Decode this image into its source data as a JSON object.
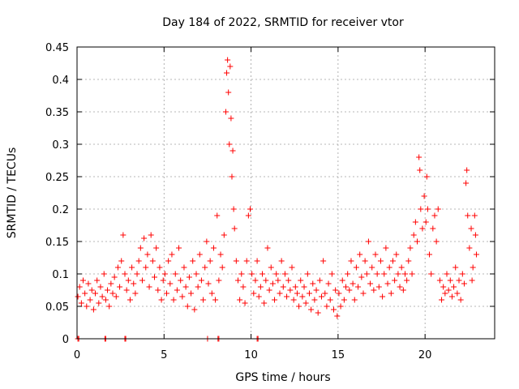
{
  "chart_data": {
    "type": "scatter",
    "title": "Day 184 of 2022, SRMTID for receiver vtor",
    "xlabel": "GPS time / hours",
    "ylabel": "SRMTID / TECUs",
    "xlim": [
      0,
      24
    ],
    "ylim": [
      0,
      0.45
    ],
    "xticks": [
      0,
      5,
      10,
      15,
      20
    ],
    "xtick_labels": [
      "0",
      "5",
      "10",
      "15",
      "20"
    ],
    "yticks": [
      0,
      0.05,
      0.1,
      0.15,
      0.2,
      0.25,
      0.3,
      0.35,
      0.4,
      0.45
    ],
    "ytick_labels": [
      "0",
      "0.05",
      "0.1",
      "0.15",
      "0.2",
      "0.25",
      "0.3",
      "0.35",
      "0.4",
      "0.45"
    ],
    "grid": true,
    "marker": "+",
    "color": "#ff0000",
    "series": [
      {
        "name": "SRMTID",
        "points": [
          [
            0.05,
            0.065
          ],
          [
            0.15,
            0.08
          ],
          [
            0.25,
            0.055
          ],
          [
            0.35,
            0.09
          ],
          [
            0.45,
            0.07
          ],
          [
            0.55,
            0.05
          ],
          [
            0.65,
            0.085
          ],
          [
            0.75,
            0.06
          ],
          [
            0.85,
            0.075
          ],
          [
            0.95,
            0.045
          ],
          [
            1.05,
            0.07
          ],
          [
            1.15,
            0.09
          ],
          [
            1.25,
            0.055
          ],
          [
            1.35,
            0.08
          ],
          [
            1.45,
            0.065
          ],
          [
            1.55,
            0.1
          ],
          [
            1.65,
            0.06
          ],
          [
            1.75,
            0.075
          ],
          [
            1.85,
            0.05
          ],
          [
            1.95,
            0.085
          ],
          [
            2.05,
            0.07
          ],
          [
            2.15,
            0.095
          ],
          [
            2.25,
            0.065
          ],
          [
            2.35,
            0.11
          ],
          [
            2.45,
            0.08
          ],
          [
            2.55,
            0.12
          ],
          [
            2.65,
            0.16
          ],
          [
            2.75,
            0.1
          ],
          [
            2.85,
            0.075
          ],
          [
            2.95,
            0.09
          ],
          [
            3.05,
            0.06
          ],
          [
            3.15,
            0.11
          ],
          [
            3.25,
            0.085
          ],
          [
            3.35,
            0.07
          ],
          [
            3.45,
            0.1
          ],
          [
            3.55,
            0.12
          ],
          [
            3.65,
            0.14
          ],
          [
            3.75,
            0.09
          ],
          [
            3.85,
            0.155
          ],
          [
            3.95,
            0.11
          ],
          [
            4.05,
            0.13
          ],
          [
            4.15,
            0.08
          ],
          [
            4.25,
            0.16
          ],
          [
            4.35,
            0.12
          ],
          [
            4.45,
            0.095
          ],
          [
            4.55,
            0.14
          ],
          [
            4.65,
            0.075
          ],
          [
            4.75,
            0.11
          ],
          [
            4.85,
            0.06
          ],
          [
            4.95,
            0.09
          ],
          [
            5.05,
            0.1
          ],
          [
            5.15,
            0.07
          ],
          [
            5.25,
            0.12
          ],
          [
            5.35,
            0.085
          ],
          [
            5.45,
            0.13
          ],
          [
            5.55,
            0.06
          ],
          [
            5.65,
            0.1
          ],
          [
            5.75,
            0.075
          ],
          [
            5.85,
            0.14
          ],
          [
            5.95,
            0.09
          ],
          [
            6.05,
            0.065
          ],
          [
            6.15,
            0.11
          ],
          [
            6.25,
            0.08
          ],
          [
            6.35,
            0.05
          ],
          [
            6.45,
            0.095
          ],
          [
            6.55,
            0.07
          ],
          [
            6.65,
            0.12
          ],
          [
            6.75,
            0.045
          ],
          [
            6.85,
            0.1
          ],
          [
            6.95,
            0.08
          ],
          [
            7.05,
            0.13
          ],
          [
            7.15,
            0.09
          ],
          [
            7.25,
            0.06
          ],
          [
            7.35,
            0.11
          ],
          [
            7.45,
            0.15
          ],
          [
            7.55,
            0.085
          ],
          [
            7.65,
            0.12
          ],
          [
            7.75,
            0.07
          ],
          [
            7.85,
            0.14
          ],
          [
            7.95,
            0.06
          ],
          [
            8.05,
            0.19
          ],
          [
            8.15,
            0.09
          ],
          [
            8.25,
            0.13
          ],
          [
            8.35,
            0.11
          ],
          [
            8.45,
            0.16
          ],
          [
            8.55,
            0.35
          ],
          [
            8.6,
            0.41
          ],
          [
            8.65,
            0.43
          ],
          [
            8.7,
            0.38
          ],
          [
            8.75,
            0.3
          ],
          [
            8.8,
            0.42
          ],
          [
            8.85,
            0.34
          ],
          [
            8.9,
            0.25
          ],
          [
            8.95,
            0.29
          ],
          [
            9.0,
            0.2
          ],
          [
            9.05,
            0.17
          ],
          [
            9.15,
            0.12
          ],
          [
            9.25,
            0.09
          ],
          [
            9.35,
            0.06
          ],
          [
            9.45,
            0.1
          ],
          [
            9.55,
            0.08
          ],
          [
            9.65,
            0.055
          ],
          [
            9.75,
            0.12
          ],
          [
            9.85,
            0.19
          ],
          [
            9.95,
            0.2
          ],
          [
            10.05,
            0.1
          ],
          [
            10.15,
            0.07
          ],
          [
            10.25,
            0.09
          ],
          [
            10.35,
            0.12
          ],
          [
            10.45,
            0.065
          ],
          [
            10.55,
            0.08
          ],
          [
            10.65,
            0.1
          ],
          [
            10.75,
            0.055
          ],
          [
            10.85,
            0.09
          ],
          [
            10.95,
            0.14
          ],
          [
            11.05,
            0.075
          ],
          [
            11.15,
            0.11
          ],
          [
            11.25,
            0.085
          ],
          [
            11.35,
            0.06
          ],
          [
            11.45,
            0.1
          ],
          [
            11.55,
            0.09
          ],
          [
            11.65,
            0.07
          ],
          [
            11.75,
            0.12
          ],
          [
            11.85,
            0.08
          ],
          [
            11.95,
            0.1
          ],
          [
            12.05,
            0.065
          ],
          [
            12.15,
            0.09
          ],
          [
            12.25,
            0.075
          ],
          [
            12.35,
            0.11
          ],
          [
            12.45,
            0.06
          ],
          [
            12.55,
            0.08
          ],
          [
            12.65,
            0.07
          ],
          [
            12.75,
            0.05
          ],
          [
            12.85,
            0.09
          ],
          [
            12.95,
            0.065
          ],
          [
            13.05,
            0.08
          ],
          [
            13.15,
            0.055
          ],
          [
            13.25,
            0.1
          ],
          [
            13.35,
            0.07
          ],
          [
            13.45,
            0.045
          ],
          [
            13.55,
            0.085
          ],
          [
            13.65,
            0.06
          ],
          [
            13.75,
            0.075
          ],
          [
            13.85,
            0.04
          ],
          [
            13.95,
            0.09
          ],
          [
            14.05,
            0.065
          ],
          [
            14.15,
            0.12
          ],
          [
            14.25,
            0.07
          ],
          [
            14.35,
            0.05
          ],
          [
            14.45,
            0.085
          ],
          [
            14.55,
            0.06
          ],
          [
            14.65,
            0.1
          ],
          [
            14.75,
            0.045
          ],
          [
            14.85,
            0.075
          ],
          [
            14.95,
            0.035
          ],
          [
            15.05,
            0.07
          ],
          [
            15.15,
            0.05
          ],
          [
            15.25,
            0.09
          ],
          [
            15.35,
            0.06
          ],
          [
            15.45,
            0.08
          ],
          [
            15.55,
            0.1
          ],
          [
            15.65,
            0.075
          ],
          [
            15.75,
            0.12
          ],
          [
            15.85,
            0.085
          ],
          [
            15.95,
            0.06
          ],
          [
            16.05,
            0.11
          ],
          [
            16.15,
            0.08
          ],
          [
            16.25,
            0.13
          ],
          [
            16.35,
            0.095
          ],
          [
            16.45,
            0.07
          ],
          [
            16.55,
            0.12
          ],
          [
            16.65,
            0.1
          ],
          [
            16.75,
            0.15
          ],
          [
            16.85,
            0.085
          ],
          [
            16.95,
            0.11
          ],
          [
            17.05,
            0.075
          ],
          [
            17.15,
            0.13
          ],
          [
            17.25,
            0.1
          ],
          [
            17.35,
            0.08
          ],
          [
            17.45,
            0.12
          ],
          [
            17.55,
            0.065
          ],
          [
            17.65,
            0.1
          ],
          [
            17.75,
            0.14
          ],
          [
            17.85,
            0.085
          ],
          [
            17.95,
            0.11
          ],
          [
            18.05,
            0.07
          ],
          [
            18.15,
            0.12
          ],
          [
            18.25,
            0.09
          ],
          [
            18.35,
            0.13
          ],
          [
            18.45,
            0.1
          ],
          [
            18.55,
            0.08
          ],
          [
            18.65,
            0.11
          ],
          [
            18.75,
            0.075
          ],
          [
            18.85,
            0.1
          ],
          [
            18.95,
            0.09
          ],
          [
            19.05,
            0.12
          ],
          [
            19.15,
            0.14
          ],
          [
            19.25,
            0.1
          ],
          [
            19.35,
            0.16
          ],
          [
            19.45,
            0.18
          ],
          [
            19.55,
            0.15
          ],
          [
            19.65,
            0.28
          ],
          [
            19.7,
            0.26
          ],
          [
            19.75,
            0.2
          ],
          [
            19.85,
            0.17
          ],
          [
            19.95,
            0.22
          ],
          [
            20.05,
            0.18
          ],
          [
            20.1,
            0.25
          ],
          [
            20.15,
            0.2
          ],
          [
            20.25,
            0.13
          ],
          [
            20.35,
            0.1
          ],
          [
            20.45,
            0.17
          ],
          [
            20.55,
            0.19
          ],
          [
            20.65,
            0.15
          ],
          [
            20.75,
            0.2
          ],
          [
            20.85,
            0.09
          ],
          [
            20.95,
            0.06
          ],
          [
            21.05,
            0.08
          ],
          [
            21.15,
            0.07
          ],
          [
            21.25,
            0.1
          ],
          [
            21.35,
            0.075
          ],
          [
            21.45,
            0.09
          ],
          [
            21.55,
            0.065
          ],
          [
            21.65,
            0.08
          ],
          [
            21.75,
            0.11
          ],
          [
            21.85,
            0.07
          ],
          [
            21.95,
            0.09
          ],
          [
            22.05,
            0.06
          ],
          [
            22.15,
            0.1
          ],
          [
            22.25,
            0.085
          ],
          [
            22.35,
            0.24
          ],
          [
            22.4,
            0.26
          ],
          [
            22.45,
            0.19
          ],
          [
            22.55,
            0.14
          ],
          [
            22.65,
            0.17
          ],
          [
            22.75,
            0.11
          ],
          [
            22.85,
            0.19
          ],
          [
            22.9,
            0.16
          ],
          [
            22.95,
            0.13
          ],
          [
            22.7,
            0.09
          ]
        ]
      }
    ],
    "baseline_points_x": [
      0.05,
      0.1,
      1.6,
      1.65,
      2.75,
      2.8,
      7.5,
      8.1,
      8.15,
      10.35,
      10.4
    ]
  }
}
